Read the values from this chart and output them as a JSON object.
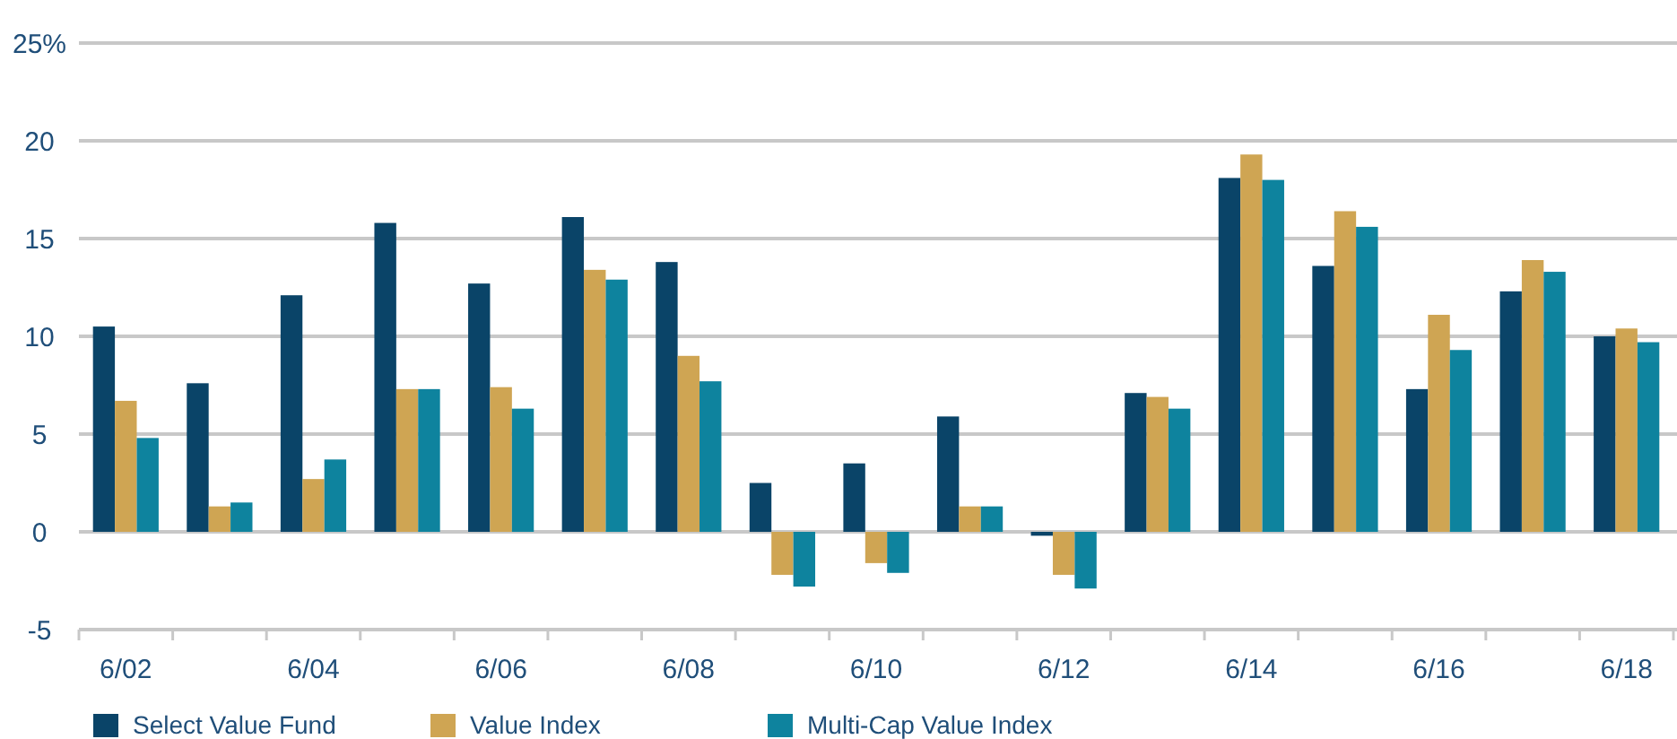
{
  "chart_data": {
    "type": "bar",
    "categories": [
      "6/02",
      null,
      "6/04",
      null,
      "6/06",
      null,
      "6/08",
      null,
      "6/10",
      null,
      "6/12",
      null,
      "6/14",
      null,
      "6/16",
      null,
      "6/18"
    ],
    "series": [
      {
        "name": "Select Value Fund",
        "color": "#0a4468",
        "values": [
          10.5,
          7.6,
          12.1,
          15.8,
          12.7,
          16.1,
          13.8,
          2.5,
          3.5,
          5.9,
          -0.2,
          7.1,
          18.1,
          13.6,
          7.3,
          12.3,
          10.0
        ]
      },
      {
        "name": "Value Index",
        "color": "#cfa553",
        "values": [
          6.7,
          1.3,
          2.7,
          7.3,
          7.4,
          13.4,
          9.0,
          -2.2,
          -1.6,
          1.3,
          -2.2,
          6.9,
          19.3,
          16.4,
          11.1,
          13.9,
          10.4
        ]
      },
      {
        "name": "Multi-Cap Value Index",
        "color": "#0e839e",
        "values": [
          4.8,
          1.5,
          3.7,
          7.3,
          6.3,
          12.9,
          7.7,
          -2.8,
          -2.1,
          1.3,
          -2.9,
          6.3,
          18.0,
          15.6,
          9.3,
          13.3,
          9.7
        ]
      }
    ],
    "ylim": [
      -5,
      25
    ],
    "yticks": [
      -5,
      0,
      5,
      10,
      15,
      20,
      {
        "value": 25,
        "label": "25%"
      }
    ],
    "grid": "y",
    "legend": "bottom"
  }
}
